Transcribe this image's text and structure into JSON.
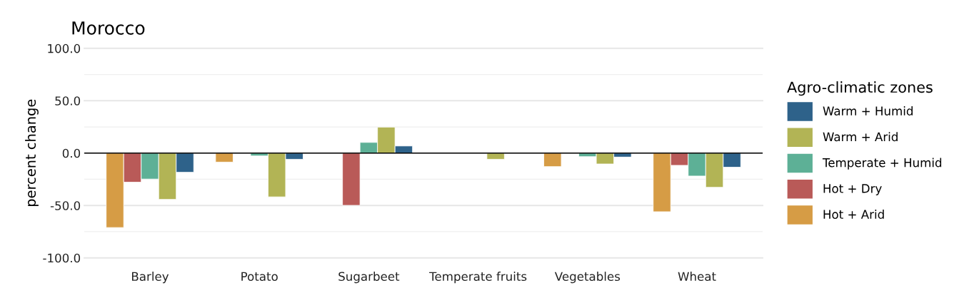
{
  "chart_data": {
    "type": "bar",
    "title": "Morocco",
    "ylabel": "percent change",
    "legend_title": "Agro-climatic zones",
    "categories": [
      "Barley",
      "Potato",
      "Sugarbeet",
      "Temperate fruits",
      "Vegetables",
      "Wheat"
    ],
    "series": [
      {
        "name": "Hot + Arid",
        "color": "#d69c45",
        "values": [
          -71.1,
          -8.6,
          null,
          null,
          -12.9,
          -56.0
        ]
      },
      {
        "name": "Hot + Dry",
        "color": "#b95a58",
        "values": [
          -27.8,
          null,
          -49.9,
          null,
          null,
          -11.7
        ]
      },
      {
        "name": "Temperate + Humid",
        "color": "#5db096",
        "values": [
          -24.8,
          -2.7,
          10.2,
          null,
          -3.4,
          -21.9
        ]
      },
      {
        "name": "Warm + Arid",
        "color": "#b2b455",
        "values": [
          -44.2,
          -41.8,
          24.8,
          -5.9,
          -10.4,
          -32.7
        ]
      },
      {
        "name": "Warm + Humid",
        "color": "#2e628a",
        "values": [
          -18.3,
          -5.9,
          6.8,
          null,
          -3.8,
          -13.5
        ]
      }
    ],
    "ylim": [
      -100,
      100
    ],
    "yticks": [
      {
        "value": -100,
        "label": "-100.0"
      },
      {
        "value": -75,
        "label": null
      },
      {
        "value": -50,
        "label": "-50.0"
      },
      {
        "value": -25,
        "label": null
      },
      {
        "value": 0,
        "label": "0.0"
      },
      {
        "value": 25,
        "label": null
      },
      {
        "value": 50,
        "label": "50.0"
      },
      {
        "value": 75,
        "label": null
      },
      {
        "value": 100,
        "label": "100.0"
      }
    ],
    "ref_lines": [
      {
        "axis": "y",
        "value": 0,
        "label": null,
        "color": "#000000"
      }
    ],
    "grid": "y",
    "legend": "right"
  }
}
